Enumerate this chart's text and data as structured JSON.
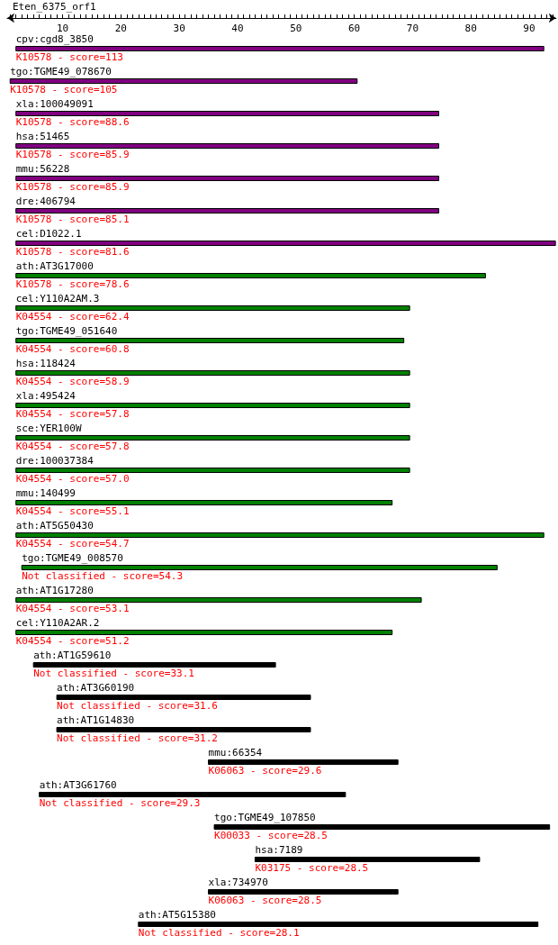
{
  "chart_data": {
    "type": "bar",
    "orientation": "horizontal",
    "title": "Eten_6375_orf1",
    "categories": [
      "cpv:cgd8_3850",
      "tgo:TGME49_078670",
      "xla:100049091",
      "hsa:51465",
      "mmu:56228",
      "dre:406794",
      "cel:D1022.1",
      "ath:AT3G17000",
      "cel:Y110A2AM.3",
      "tgo:TGME49_051640",
      "hsa:118424",
      "xla:495424",
      "sce:YER100W",
      "dre:100037384",
      "mmu:140499",
      "ath:AT5G50430",
      "tgo:TGME49_008570",
      "ath:AT1G17280",
      "cel:Y110A2AR.2",
      "ath:AT1G59610",
      "ath:AT3G60190",
      "ath:AT1G14830",
      "mmu:66354",
      "ath:AT3G61760",
      "tgo:TGME49_107850",
      "hsa:7189",
      "xla:734970",
      "ath:AT5G15380"
    ],
    "base": [
      2,
      1,
      2,
      2,
      2,
      2,
      2,
      2,
      2,
      2,
      2,
      2,
      2,
      2,
      2,
      2,
      3,
      2,
      2,
      5,
      9,
      9,
      35,
      6,
      36,
      43,
      35,
      23
    ],
    "values": [
      90.5,
      59.5,
      72.5,
      72.5,
      72.5,
      72.5,
      92.5,
      80.5,
      67.5,
      66.5,
      67.5,
      67.5,
      67.5,
      67.5,
      64.5,
      90.5,
      81.5,
      69.5,
      64.5,
      41.5,
      43.5,
      43.5,
      32.5,
      52.5,
      57.5,
      38.5,
      32.5,
      68.5
    ],
    "colors": [
      "#800080",
      "#800080",
      "#800080",
      "#800080",
      "#800080",
      "#800080",
      "#800080",
      "#008000",
      "#008000",
      "#008000",
      "#008000",
      "#008000",
      "#008000",
      "#008000",
      "#008000",
      "#008000",
      "#008000",
      "#008000",
      "#008000",
      "#000000",
      "#000000",
      "#000000",
      "#000000",
      "#000000",
      "#000000",
      "#000000",
      "#000000",
      "#000000"
    ],
    "annotations": [
      {
        "text": "K10578 - score=113",
        "x": 2,
        "y": "cpv:cgd8_3850"
      },
      {
        "text": "K10578 - score=105",
        "x": 1,
        "y": "tgo:TGME49_078670"
      },
      {
        "text": "K10578 - score=88.6",
        "x": 2,
        "y": "xla:100049091"
      },
      {
        "text": "K10578 - score=85.9",
        "x": 2,
        "y": "hsa:51465"
      },
      {
        "text": "K10578 - score=85.9",
        "x": 2,
        "y": "mmu:56228"
      },
      {
        "text": "K10578 - score=85.1",
        "x": 2,
        "y": "dre:406794"
      },
      {
        "text": "K10578 - score=81.6",
        "x": 2,
        "y": "cel:D1022.1"
      },
      {
        "text": "K10578 - score=78.6",
        "x": 2,
        "y": "ath:AT3G17000"
      },
      {
        "text": "K04554 - score=62.4",
        "x": 2,
        "y": "cel:Y110A2AM.3"
      },
      {
        "text": "K04554 - score=60.8",
        "x": 2,
        "y": "tgo:TGME49_051640"
      },
      {
        "text": "K04554 - score=58.9",
        "x": 2,
        "y": "hsa:118424"
      },
      {
        "text": "K04554 - score=57.8",
        "x": 2,
        "y": "xla:495424"
      },
      {
        "text": "K04554 - score=57.8",
        "x": 2,
        "y": "sce:YER100W"
      },
      {
        "text": "K04554 - score=57.0",
        "x": 2,
        "y": "dre:100037384"
      },
      {
        "text": "K04554 - score=55.1",
        "x": 2,
        "y": "mmu:140499"
      },
      {
        "text": "K04554 - score=54.7",
        "x": 2,
        "y": "ath:AT5G50430"
      },
      {
        "text": "Not classified - score=54.3",
        "x": 3,
        "y": "tgo:TGME49_008570"
      },
      {
        "text": "K04554 - score=53.1",
        "x": 2,
        "y": "ath:AT1G17280"
      },
      {
        "text": "K04554 - score=51.2",
        "x": 2,
        "y": "cel:Y110A2AR.2"
      },
      {
        "text": "Not classified - score=33.1",
        "x": 5,
        "y": "ath:AT1G59610"
      },
      {
        "text": "Not classified - score=31.6",
        "x": 9,
        "y": "ath:AT3G60190"
      },
      {
        "text": "Not classified - score=31.2",
        "x": 9,
        "y": "ath:AT1G14830"
      },
      {
        "text": "K06063 - score=29.6",
        "x": 35,
        "y": "mmu:66354"
      },
      {
        "text": "Not classified - score=29.3",
        "x": 6,
        "y": "ath:AT3G61760"
      },
      {
        "text": "K00033 - score=28.5",
        "x": 36,
        "y": "tgo:TGME49_107850"
      },
      {
        "text": "K03175 - score=28.5",
        "x": 43,
        "y": "hsa:7189"
      },
      {
        "text": "K06063 - score=28.5",
        "x": 35,
        "y": "xla:734970"
      },
      {
        "text": "Not classified - score=28.1",
        "x": 23,
        "y": "ath:AT5G15380"
      }
    ],
    "xlim": [
      0.5,
      94.6
    ],
    "xticks": [
      10,
      20,
      30,
      40,
      50,
      60,
      70,
      80,
      90
    ]
  }
}
